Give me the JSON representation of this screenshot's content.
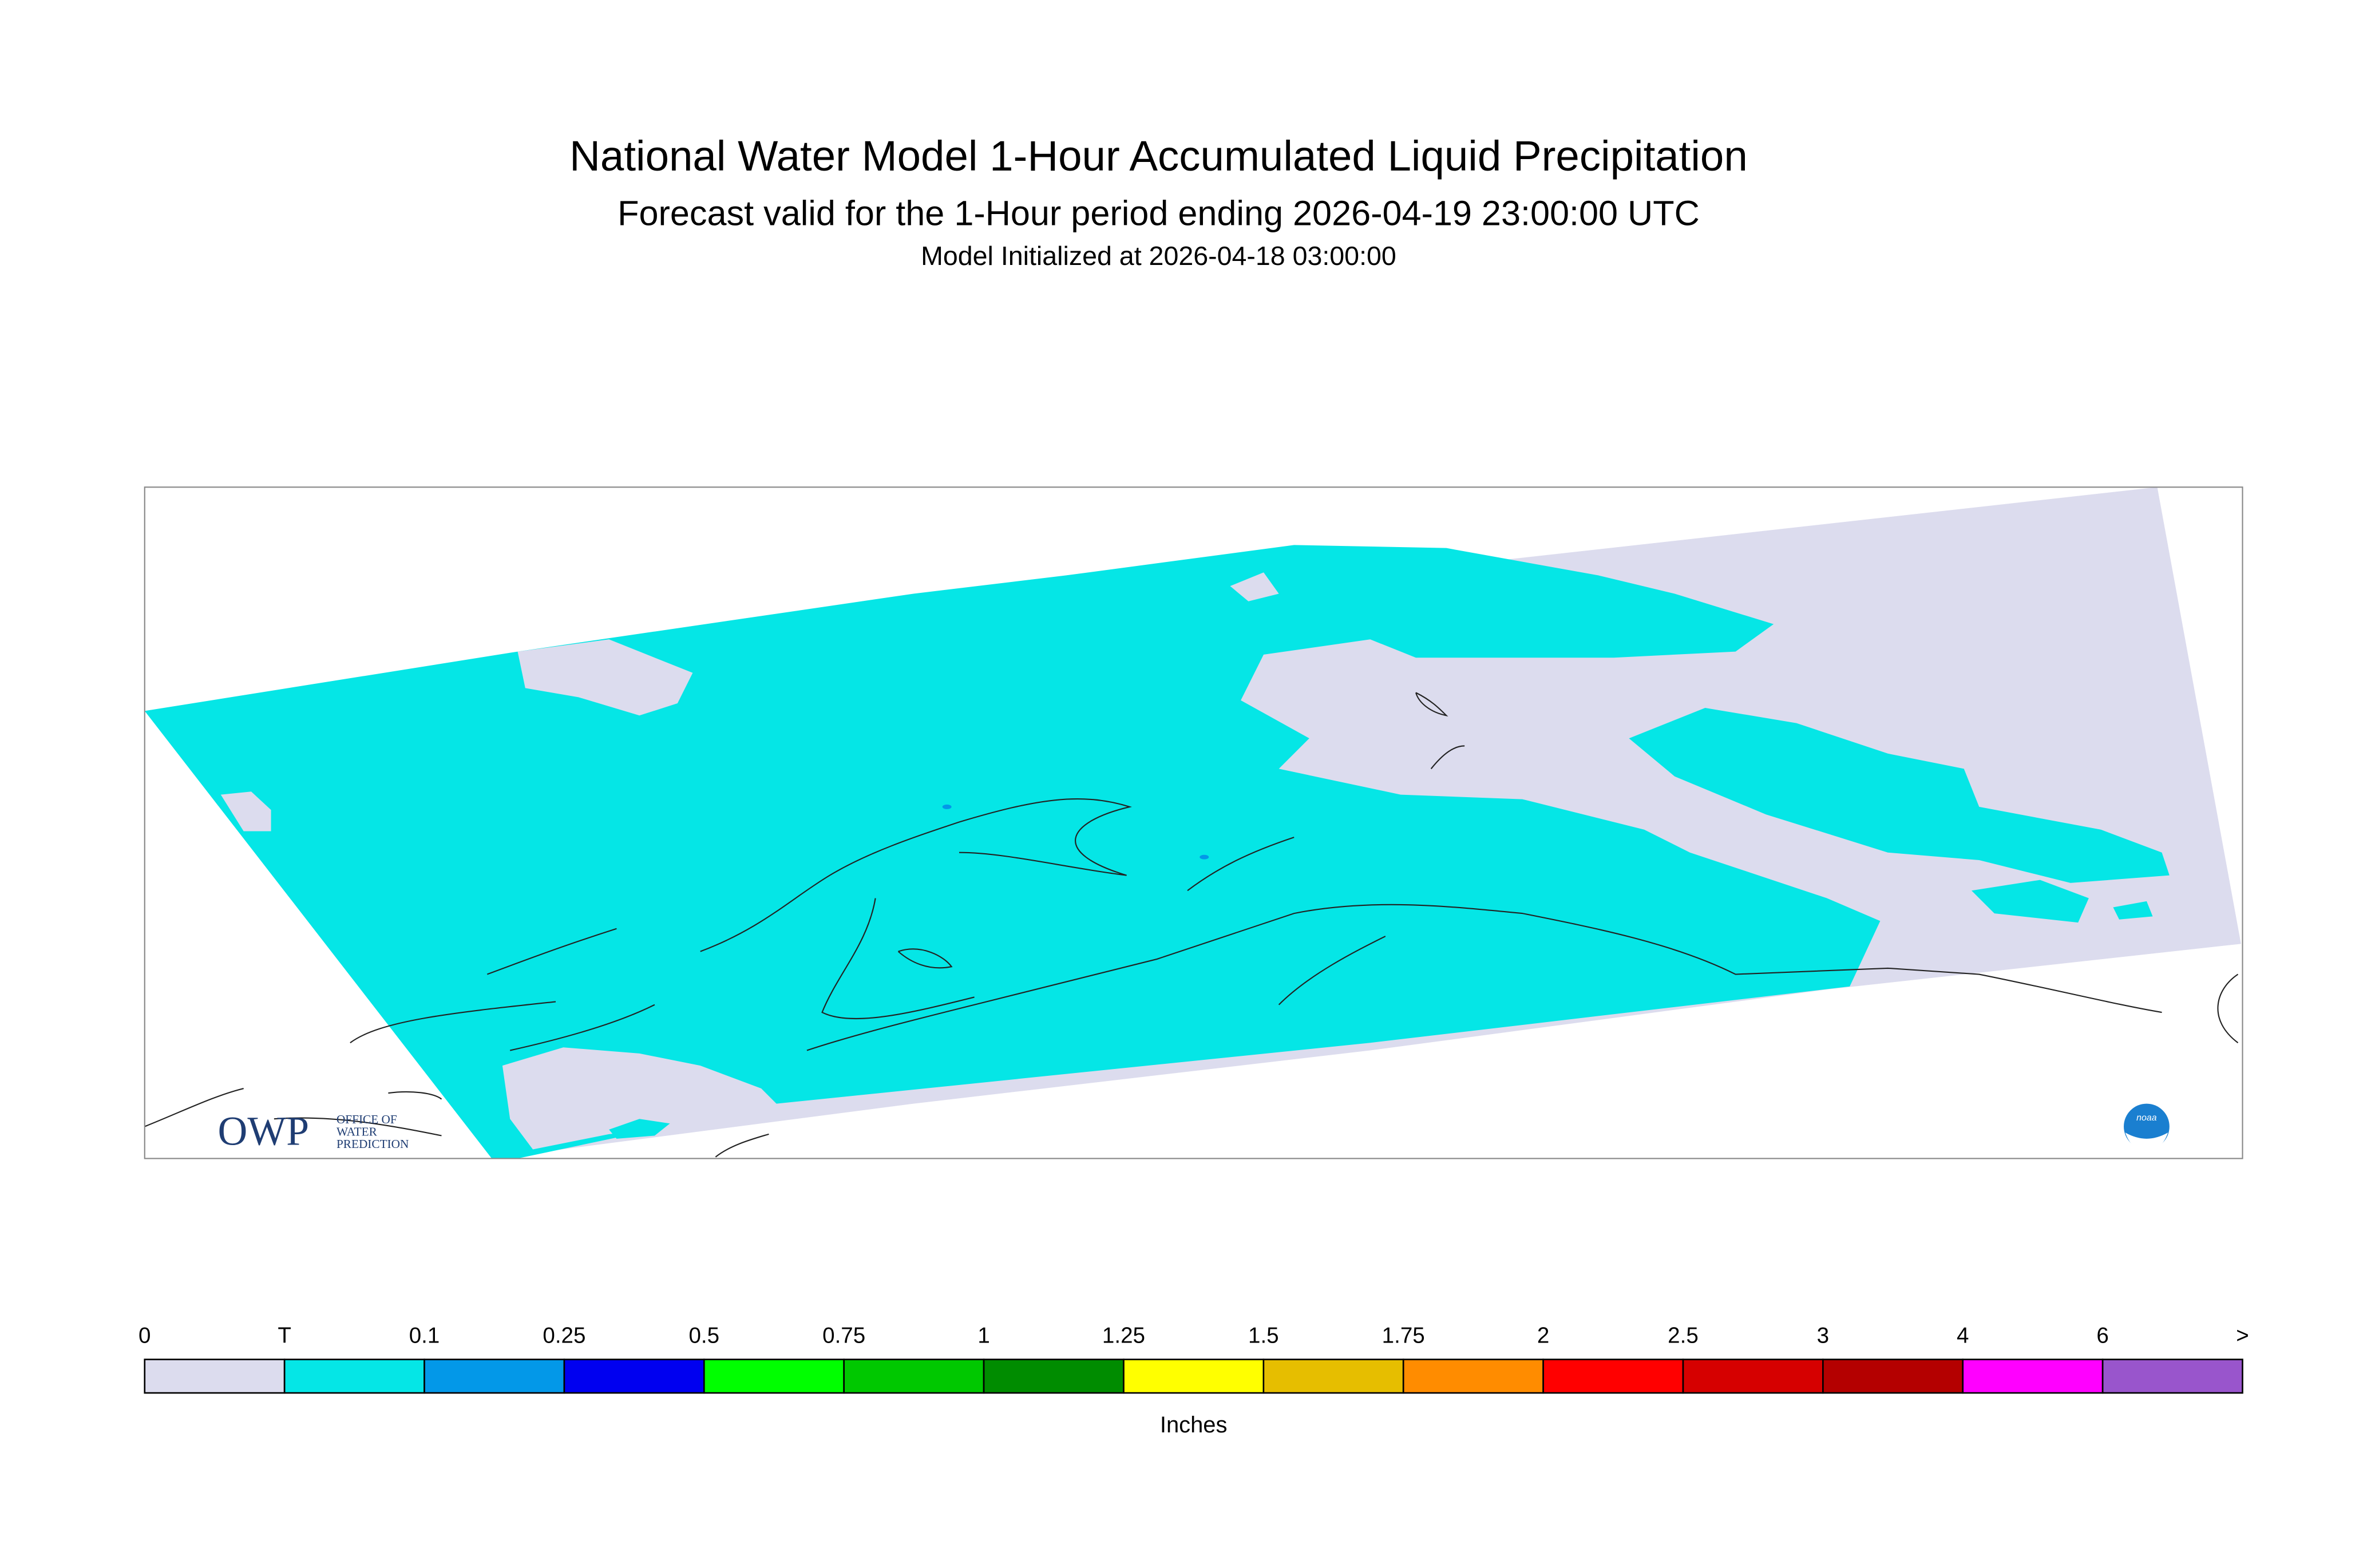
{
  "header": {
    "title": "National Water Model 1-Hour Accumulated Liquid Precipitation",
    "subtitle": "Forecast valid for the 1-Hour period ending 2026-04-19 23:00:00 UTC",
    "initialized": "Model Initialized at 2026-04-18 03:00:00"
  },
  "legend": {
    "unit": "Inches",
    "labels": [
      0,
      "T",
      0.1,
      0.25,
      0.5,
      0.75,
      1,
      1.25,
      1.5,
      1.75,
      2,
      2.5,
      3,
      4,
      6,
      ">"
    ],
    "colors": [
      "#dcdcee",
      "#05e6e6",
      "#0398e8",
      "#0000f0",
      "#00ff00",
      "#00c800",
      "#008c00",
      "#ffff00",
      "#e6be00",
      "#ff8c00",
      "#ff0000",
      "#d60000",
      "#b40000",
      "#ff00ff",
      "#9955cc"
    ]
  },
  "logos": {
    "owp": "OWP",
    "owp_lines": [
      "OFFICE OF",
      "WATER",
      "PREDICTION"
    ],
    "noaa": "noaa"
  }
}
